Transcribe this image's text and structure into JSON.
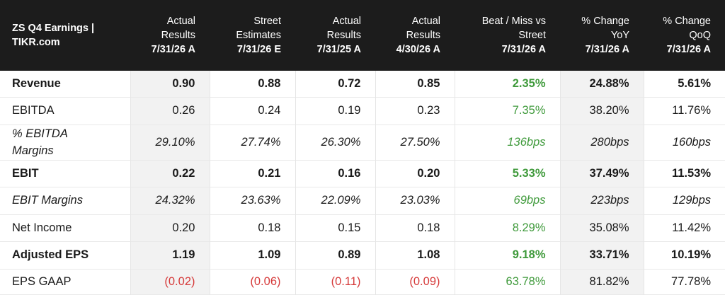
{
  "header": {
    "title_line1": "ZS Q4 Earnings |",
    "title_line2": "TIKR.com",
    "columns": [
      {
        "line1": "Actual",
        "line2": "Results",
        "date": "7/31/26 A"
      },
      {
        "line1": "Street",
        "line2": "Estimates",
        "date": "7/31/26 E"
      },
      {
        "line1": "Actual",
        "line2": "Results",
        "date": "7/31/25 A"
      },
      {
        "line1": "Actual",
        "line2": "Results",
        "date": "4/30/26 A"
      },
      {
        "line1": "Beat / Miss vs",
        "line2": "Street",
        "date": "7/31/26 A"
      },
      {
        "line1": "% Change",
        "line2": "YoY",
        "date": "7/31/26 A"
      },
      {
        "line1": "% Change",
        "line2": "QoQ",
        "date": "7/31/26 A"
      }
    ]
  },
  "rows": [
    {
      "label": "Revenue",
      "values": [
        "0.90",
        "0.88",
        "0.72",
        "0.85",
        "2.35%",
        "24.88%",
        "5.61%"
      ]
    },
    {
      "label": "EBITDA",
      "values": [
        "0.26",
        "0.24",
        "0.19",
        "0.23",
        "7.35%",
        "38.20%",
        "11.76%"
      ]
    },
    {
      "label_line1": "% EBITDA",
      "label_line2": "Margins",
      "values": [
        "29.10%",
        "27.74%",
        "26.30%",
        "27.50%",
        "136bps",
        "280bps",
        "160bps"
      ]
    },
    {
      "label": "EBIT",
      "values": [
        "0.22",
        "0.21",
        "0.16",
        "0.20",
        "5.33%",
        "37.49%",
        "11.53%"
      ]
    },
    {
      "label": "EBIT Margins",
      "values": [
        "24.32%",
        "23.63%",
        "22.09%",
        "23.03%",
        "69bps",
        "223bps",
        "129bps"
      ]
    },
    {
      "label": "Net Income",
      "values": [
        "0.20",
        "0.18",
        "0.15",
        "0.18",
        "8.29%",
        "35.08%",
        "11.42%"
      ]
    },
    {
      "label": "Adjusted EPS",
      "values": [
        "1.19",
        "1.09",
        "0.89",
        "1.08",
        "9.18%",
        "33.71%",
        "10.19%"
      ]
    },
    {
      "label": "EPS GAAP",
      "values": [
        "(0.02)",
        "(0.06)",
        "(0.11)",
        "(0.09)",
        "63.78%",
        "81.82%",
        "77.78%"
      ]
    }
  ],
  "colors": {
    "header_bg": "#1c1c1c",
    "positive": "#3f9a3b",
    "negative": "#d63a3a",
    "shade": "#f2f2f2"
  }
}
